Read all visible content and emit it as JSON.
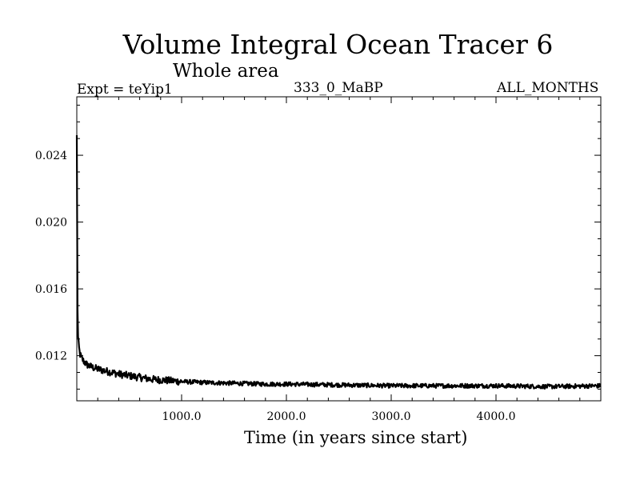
{
  "chart_data": {
    "type": "line",
    "title": "Volume Integral Ocean Tracer 6",
    "subtitle": "Whole area",
    "annotations": {
      "experiment": "Expt = teYip1",
      "center": "333_0_MaBP",
      "months": "ALL_MONTHS"
    },
    "xlabel": "Time (in years since start)",
    "ylabel": "",
    "xlim": [
      0,
      5000
    ],
    "ylim": [
      0.0093,
      0.0275
    ],
    "x_ticks": [
      1000,
      2000,
      3000,
      4000
    ],
    "x_tick_labels": [
      "1000.0",
      "2000.0",
      "3000.0",
      "4000.0"
    ],
    "y_ticks": [
      0.012,
      0.016,
      0.02,
      0.024
    ],
    "y_tick_labels": [
      "0.012",
      "0.016",
      "0.020",
      "0.024"
    ],
    "grid": false,
    "series": [
      {
        "x": [
          0,
          5,
          10,
          20,
          30,
          50,
          75,
          100,
          150,
          200,
          300,
          400,
          500,
          700,
          900,
          1000,
          1200,
          1500,
          1800,
          2000,
          2500,
          3000,
          3500,
          4000,
          4500,
          5000
        ],
        "y": [
          0.0252,
          0.016,
          0.0132,
          0.0125,
          0.0121,
          0.0118,
          0.0116,
          0.01145,
          0.0113,
          0.0112,
          0.01105,
          0.0109,
          0.0108,
          0.0106,
          0.0105,
          0.01045,
          0.0104,
          0.01035,
          0.0103,
          0.0103,
          0.01025,
          0.0102,
          0.0102,
          0.0102,
          0.01015,
          0.0102
        ]
      }
    ]
  }
}
